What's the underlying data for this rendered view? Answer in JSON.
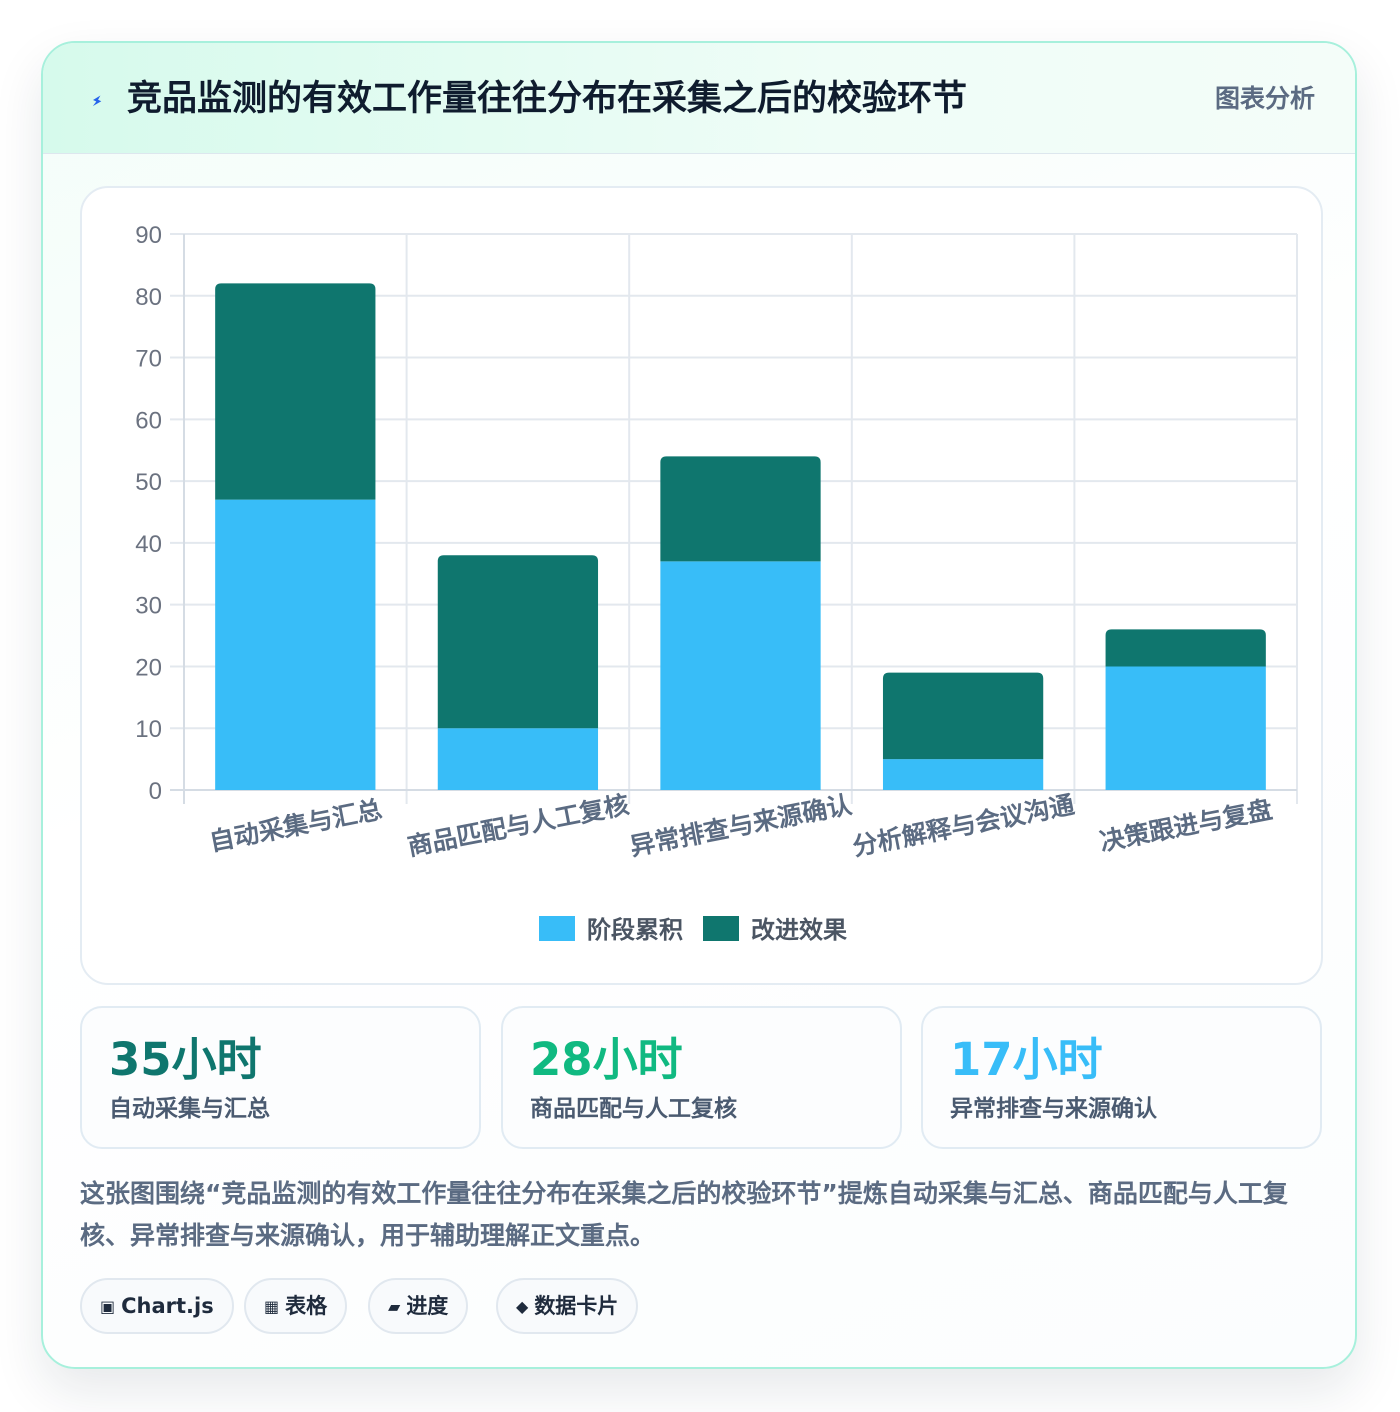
{
  "header": {
    "title": "竞品监测的有效工作量往往分布在采集之后的校验环节",
    "tag": "图表分析",
    "icon": "lightning-icon",
    "icon_color": "#2563eb"
  },
  "chart_data": {
    "type": "bar",
    "stacked": true,
    "categories": [
      "自动采集与汇总",
      "商品匹配与人工复核",
      "异常排查与来源确认",
      "分析解释与会议沟通",
      "决策跟进与复盘"
    ],
    "series": [
      {
        "name": "阶段累积",
        "values": [
          47,
          10,
          37,
          5,
          20
        ],
        "color": "#38bdf8"
      },
      {
        "name": "改进效果",
        "values": [
          35,
          28,
          17,
          14,
          6
        ],
        "color": "#0f766e"
      }
    ],
    "y_ticks": [
      "0",
      "10",
      "20",
      "30",
      "40",
      "50",
      "60",
      "70",
      "80",
      "90"
    ],
    "ylim": [
      0,
      90
    ],
    "grid": true,
    "legend_position": "bottom"
  },
  "stats": [
    {
      "value": "35小时",
      "label": "自动采集与汇总",
      "color": "#0f766e"
    },
    {
      "value": "28小时",
      "label": "商品匹配与人工复核",
      "color": "#10b981"
    },
    {
      "value": "17小时",
      "label": "异常排查与来源确认",
      "color": "#38bdf8"
    }
  ],
  "description": "这张图围绕“竞品监测的有效工作量往往分布在采集之后的校验环节”提炼自动采集与汇总、商品匹配与人工复核、异常排查与来源确认，用于辅助理解正文重点。",
  "chips": [
    {
      "icon": "▣",
      "label": "Chart.js"
    },
    {
      "icon": "▦",
      "label": "表格"
    },
    {
      "icon": "▰",
      "label": "进度"
    },
    {
      "icon": "◆",
      "label": "数据卡片"
    }
  ]
}
